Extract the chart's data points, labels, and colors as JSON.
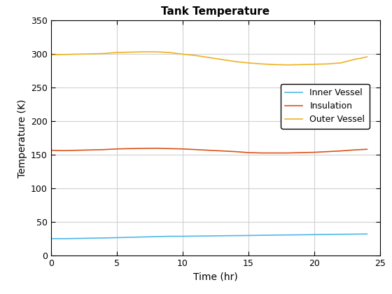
{
  "title": "Tank Temperature",
  "xlabel": "Time (hr)",
  "ylabel": "Temperature (K)",
  "xlim": [
    0,
    25
  ],
  "ylim": [
    0,
    350
  ],
  "xticks": [
    0,
    5,
    10,
    15,
    20,
    25
  ],
  "yticks": [
    0,
    50,
    100,
    150,
    200,
    250,
    300,
    350
  ],
  "inner_vessel_color": "#4db8e8",
  "insulation_color": "#d95319",
  "outer_vessel_color": "#edb120",
  "legend_labels": [
    "Inner Vessel",
    "Insulation",
    "Outer Vessel"
  ],
  "time": [
    0,
    1,
    2,
    3,
    4,
    5,
    6,
    7,
    8,
    9,
    10,
    11,
    12,
    13,
    14,
    15,
    16,
    17,
    18,
    19,
    20,
    21,
    22,
    23,
    24
  ],
  "inner_vessel": [
    25.5,
    25.5,
    25.8,
    26.2,
    26.5,
    27.0,
    27.5,
    28.0,
    28.5,
    29.0,
    29.0,
    29.3,
    29.5,
    29.8,
    30.0,
    30.2,
    30.5,
    30.8,
    31.0,
    31.2,
    31.5,
    31.8,
    32.0,
    32.2,
    32.5
  ],
  "insulation": [
    157,
    156.5,
    157,
    157.5,
    158,
    159,
    159.5,
    159.8,
    160,
    159.5,
    159,
    158,
    157,
    156,
    155,
    153.5,
    153,
    153,
    153,
    153.5,
    154,
    155,
    156,
    157.5,
    158.5
  ],
  "outer_vessel": [
    299,
    299.5,
    300,
    300.5,
    301,
    302.5,
    303,
    303.5,
    303.5,
    302.5,
    300,
    298,
    295,
    292,
    289,
    287,
    285.5,
    284.5,
    284,
    284.5,
    285,
    285.5,
    287,
    292,
    296
  ],
  "figsize": [
    5.6,
    4.2
  ],
  "dpi": 100,
  "title_fontsize": 11,
  "label_fontsize": 10,
  "tick_fontsize": 9,
  "legend_fontsize": 9,
  "linewidth": 1.2,
  "grid_color": "#d0d0d0",
  "axes_bg": "#ffffff",
  "fig_bg": "#ffffff"
}
